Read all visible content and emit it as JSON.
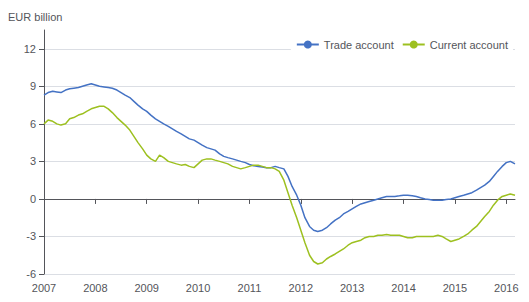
{
  "chart_data": {
    "type": "line",
    "ylabel": "EUR billion",
    "x": [
      2007.0,
      2007.08,
      2007.17,
      2007.25,
      2007.33,
      2007.42,
      2007.5,
      2007.58,
      2007.67,
      2007.75,
      2007.83,
      2007.92,
      2008.0,
      2008.08,
      2008.17,
      2008.25,
      2008.33,
      2008.42,
      2008.5,
      2008.58,
      2008.67,
      2008.75,
      2008.83,
      2008.92,
      2009.0,
      2009.08,
      2009.17,
      2009.25,
      2009.33,
      2009.42,
      2009.5,
      2009.58,
      2009.67,
      2009.75,
      2009.83,
      2009.92,
      2010.0,
      2010.08,
      2010.17,
      2010.25,
      2010.33,
      2010.42,
      2010.5,
      2010.58,
      2010.67,
      2010.75,
      2010.83,
      2010.92,
      2011.0,
      2011.08,
      2011.17,
      2011.25,
      2011.33,
      2011.42,
      2011.5,
      2011.58,
      2011.67,
      2011.75,
      2011.83,
      2011.92,
      2012.0,
      2012.08,
      2012.17,
      2012.25,
      2012.33,
      2012.42,
      2012.5,
      2012.58,
      2012.67,
      2012.75,
      2012.83,
      2012.92,
      2013.0,
      2013.08,
      2013.17,
      2013.25,
      2013.33,
      2013.42,
      2013.5,
      2013.58,
      2013.67,
      2013.75,
      2013.83,
      2013.92,
      2014.0,
      2014.08,
      2014.17,
      2014.25,
      2014.33,
      2014.42,
      2014.5,
      2014.58,
      2014.67,
      2014.75,
      2014.83,
      2014.92,
      2015.0,
      2015.08,
      2015.17,
      2015.25,
      2015.33,
      2015.42,
      2015.5,
      2015.58,
      2015.67,
      2015.75,
      2015.83,
      2015.92,
      2016.0,
      2016.08,
      2016.17
    ],
    "series": [
      {
        "name": "Trade account",
        "color": "#4472c4",
        "values": [
          8.3,
          8.5,
          8.6,
          8.55,
          8.5,
          8.7,
          8.8,
          8.85,
          8.9,
          9.0,
          9.1,
          9.2,
          9.1,
          9.0,
          8.95,
          8.9,
          8.85,
          8.7,
          8.5,
          8.3,
          8.1,
          7.8,
          7.5,
          7.2,
          7.0,
          6.7,
          6.4,
          6.2,
          6.0,
          5.8,
          5.6,
          5.4,
          5.2,
          5.0,
          4.8,
          4.7,
          4.5,
          4.3,
          4.1,
          4.0,
          3.9,
          3.6,
          3.4,
          3.3,
          3.2,
          3.1,
          3.0,
          2.9,
          2.75,
          2.65,
          2.6,
          2.55,
          2.5,
          2.5,
          2.6,
          2.5,
          2.4,
          1.8,
          1.0,
          0.3,
          -0.5,
          -1.5,
          -2.2,
          -2.5,
          -2.6,
          -2.5,
          -2.3,
          -2.0,
          -1.7,
          -1.5,
          -1.2,
          -1.0,
          -0.8,
          -0.6,
          -0.4,
          -0.3,
          -0.2,
          -0.1,
          0.0,
          0.1,
          0.2,
          0.2,
          0.2,
          0.25,
          0.3,
          0.3,
          0.25,
          0.2,
          0.1,
          0.0,
          -0.05,
          -0.1,
          -0.1,
          -0.1,
          -0.05,
          0.0,
          0.1,
          0.2,
          0.3,
          0.4,
          0.5,
          0.7,
          0.9,
          1.1,
          1.4,
          1.8,
          2.2,
          2.6,
          2.9,
          3.0,
          2.8
        ]
      },
      {
        "name": "Current account",
        "color": "#9dc020",
        "values": [
          6.0,
          6.3,
          6.2,
          6.0,
          5.9,
          6.0,
          6.4,
          6.5,
          6.7,
          6.8,
          7.0,
          7.2,
          7.3,
          7.4,
          7.4,
          7.2,
          6.9,
          6.5,
          6.2,
          5.9,
          5.5,
          5.0,
          4.5,
          4.0,
          3.5,
          3.2,
          3.0,
          3.5,
          3.3,
          3.0,
          2.9,
          2.8,
          2.7,
          2.75,
          2.6,
          2.5,
          2.8,
          3.1,
          3.2,
          3.2,
          3.1,
          3.0,
          2.9,
          2.8,
          2.6,
          2.5,
          2.4,
          2.5,
          2.6,
          2.7,
          2.7,
          2.6,
          2.5,
          2.5,
          2.4,
          2.2,
          1.5,
          0.5,
          -0.5,
          -1.5,
          -2.5,
          -3.5,
          -4.5,
          -5.0,
          -5.2,
          -5.1,
          -4.8,
          -4.6,
          -4.4,
          -4.2,
          -4.0,
          -3.7,
          -3.5,
          -3.4,
          -3.3,
          -3.1,
          -3.0,
          -3.0,
          -2.9,
          -2.9,
          -2.85,
          -2.9,
          -2.9,
          -2.9,
          -3.0,
          -3.1,
          -3.1,
          -3.0,
          -3.0,
          -3.0,
          -3.0,
          -3.0,
          -2.9,
          -3.0,
          -3.2,
          -3.4,
          -3.3,
          -3.2,
          -3.0,
          -2.8,
          -2.5,
          -2.2,
          -1.8,
          -1.4,
          -1.0,
          -0.5,
          -0.1,
          0.2,
          0.3,
          0.4,
          0.3
        ]
      }
    ],
    "xlim": [
      2007.0,
      2016.17
    ],
    "xticks": [
      2007,
      2008,
      2009,
      2010,
      2011,
      2012,
      2013,
      2014,
      2015,
      2016
    ],
    "ylim": [
      -6,
      13.5
    ],
    "yticks": [
      -6,
      -3,
      0,
      3,
      6,
      9,
      12
    ],
    "grid": true,
    "legend": "upper right"
  }
}
